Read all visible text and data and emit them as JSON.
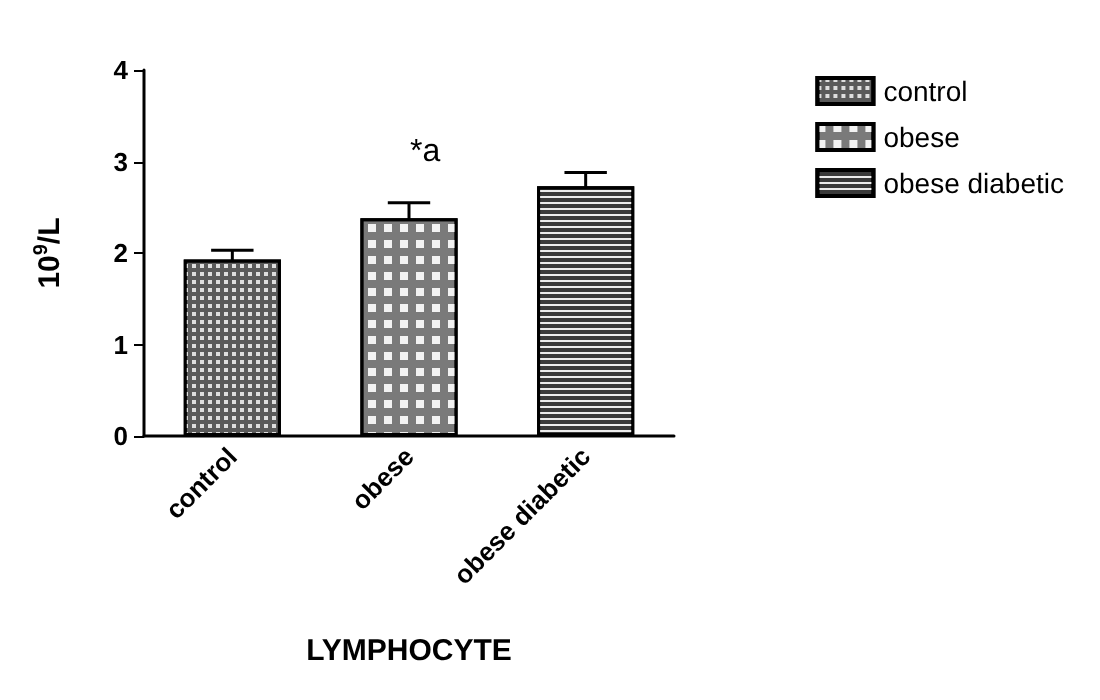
{
  "chart_data": {
    "type": "bar",
    "xlabel": "LYMPHOCYTE",
    "ylabel": "10$^{9}$/L",
    "categories": [
      "control",
      "obese",
      "obese diabetic"
    ],
    "series": [
      {
        "name": "control",
        "color": "#5a5a5a",
        "values": [
          1.93,
          null,
          null
        ],
        "errors": [
          0.1,
          null,
          null
        ]
      },
      {
        "name": "obese",
        "color": "#7a7a7a",
        "values": [
          null,
          2.38,
          null
        ],
        "errors": [
          null,
          0.17,
          null
        ]
      },
      {
        "name": "obese diabetic",
        "color": "#3a3a3a",
        "values": [
          null,
          null,
          2.73
        ],
        "errors": [
          null,
          null,
          0.15
        ]
      }
    ],
    "ylim": [
      0,
      4
    ],
    "yticks": [
      0,
      1,
      2,
      3,
      4
    ],
    "grid": false,
    "legend": "top right",
    "annotations": [
      "*a"
    ]
  }
}
